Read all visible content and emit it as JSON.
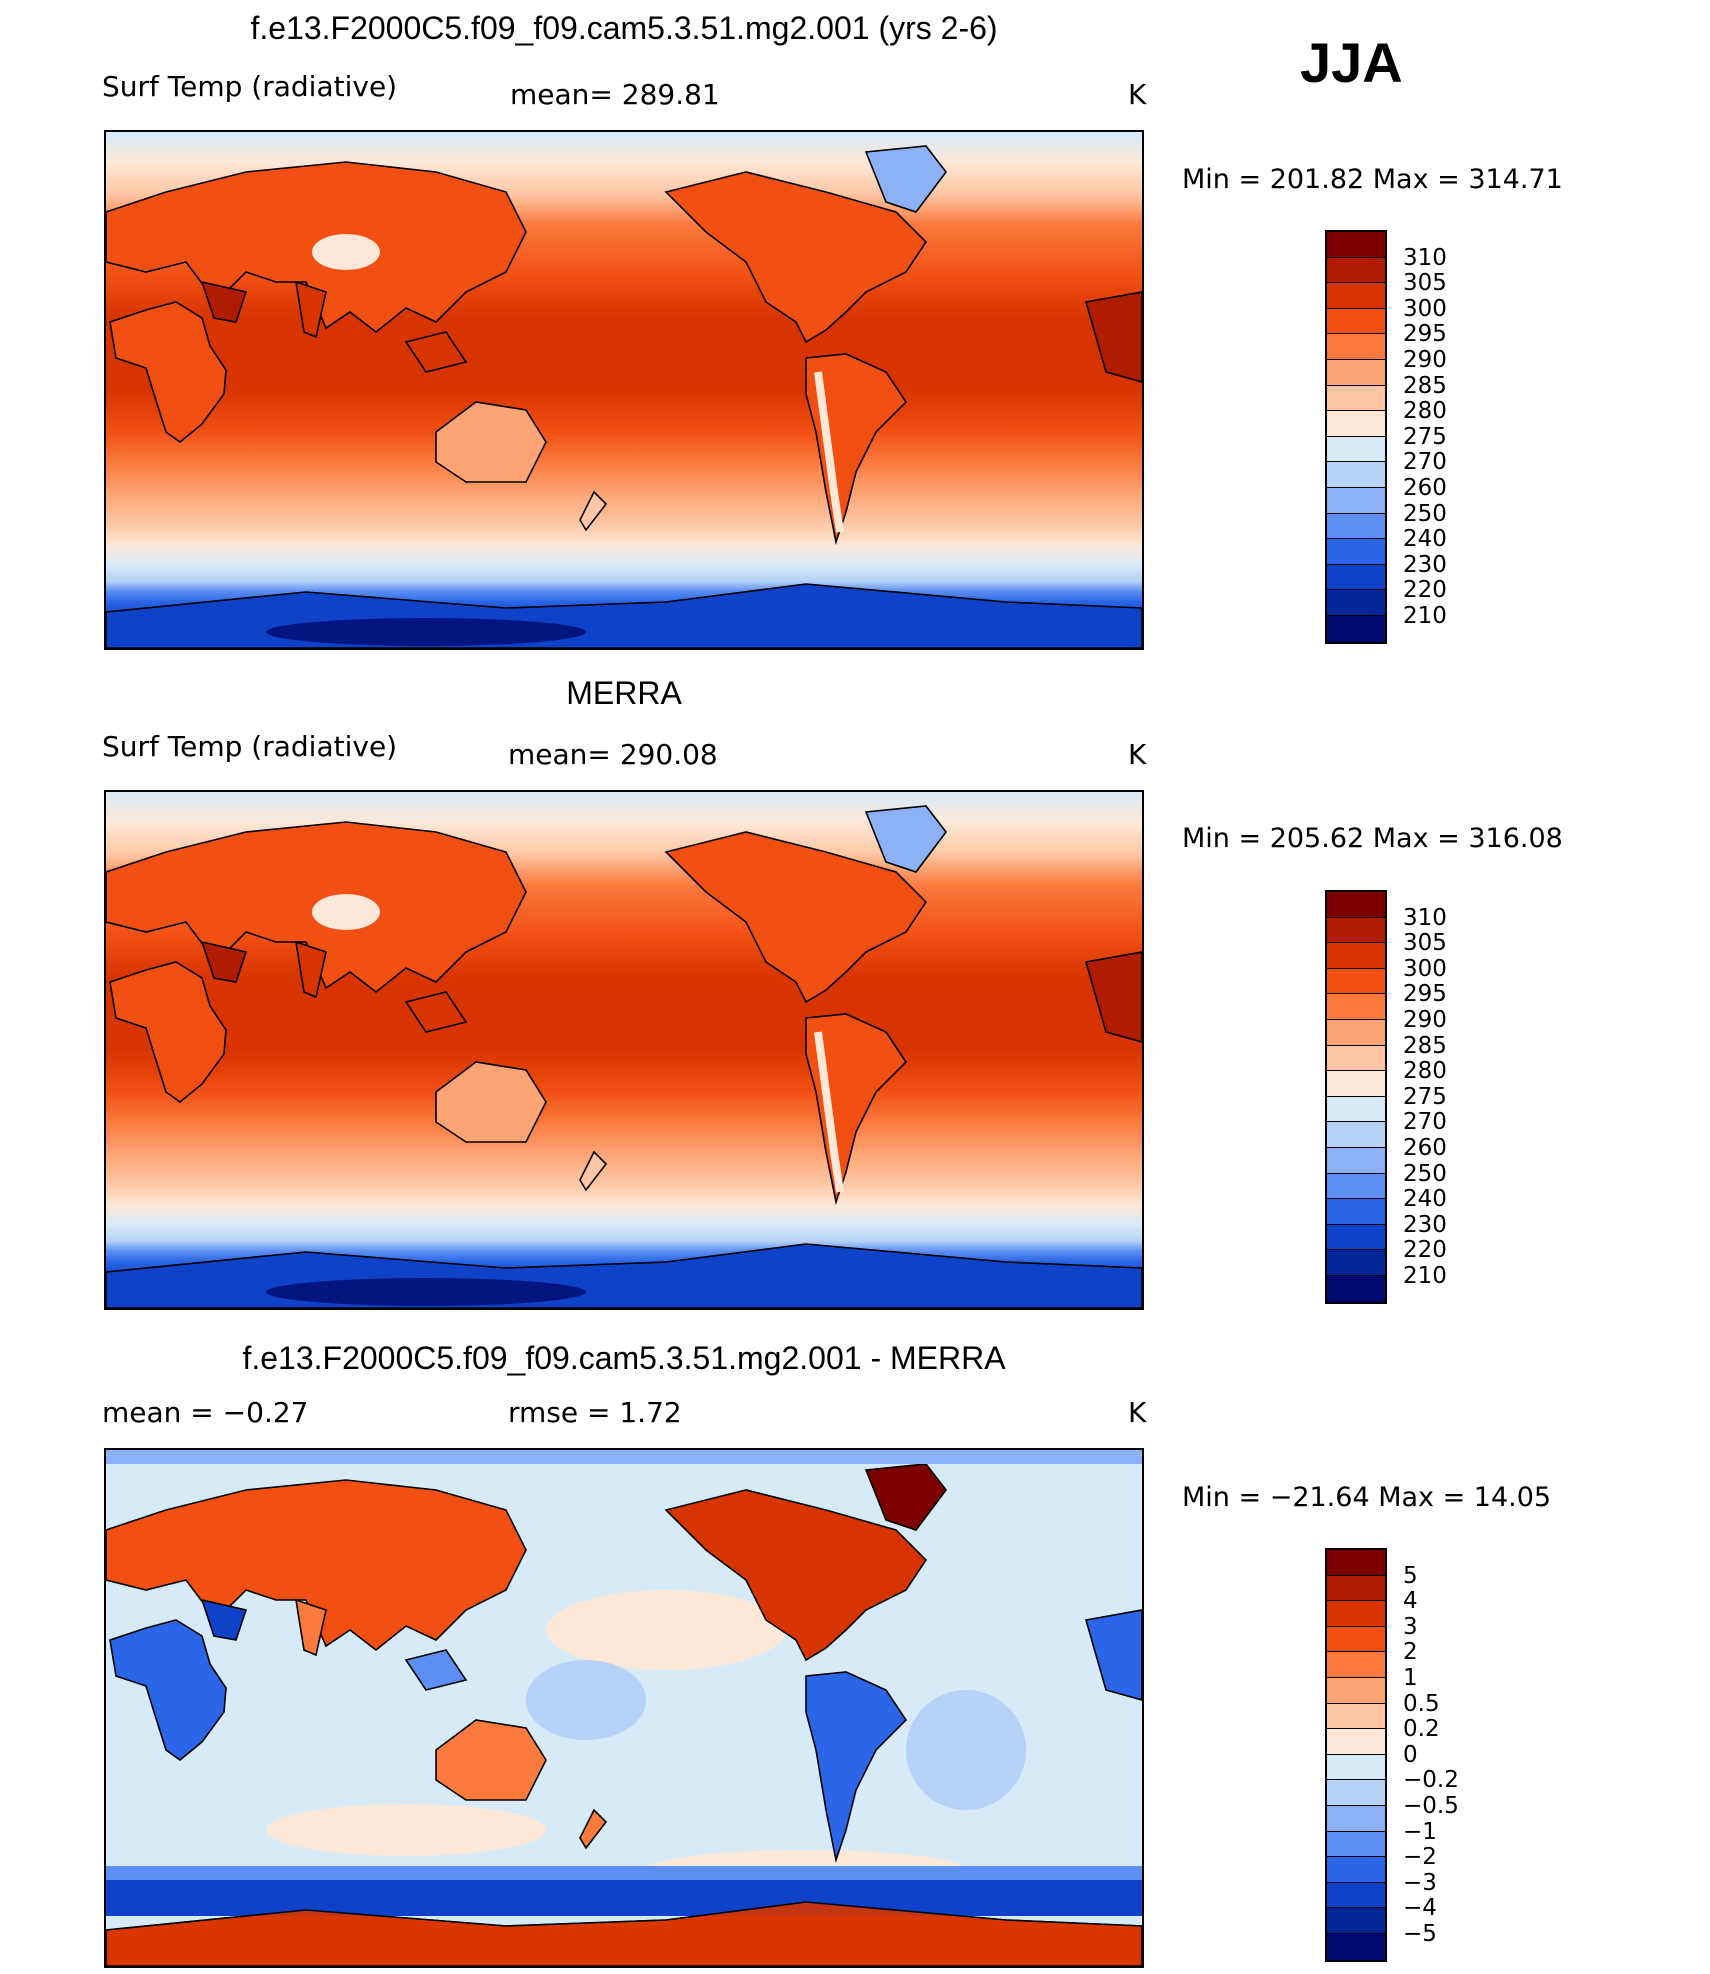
{
  "season": "JJA",
  "chart_data": [
    {
      "type": "heatmap",
      "title": "f.e13.F2000C5.f09_f09.cam5.3.51.mg2.001 (yrs 2-6)",
      "variable": "Surf Temp (radiative)",
      "stat_text": "mean=  289.81",
      "units": "K",
      "minmax_text": "Min  =  201.82  Max  =  314.71",
      "mean": 289.81,
      "min": 201.82,
      "max": 314.71,
      "colorbar": {
        "labels": [
          "310",
          "305",
          "300",
          "295",
          "290",
          "285",
          "280",
          "275",
          "270",
          "260",
          "250",
          "240",
          "230",
          "220",
          "210"
        ],
        "colors": [
          "#7d0000",
          "#b01c00",
          "#d73400",
          "#f24f13",
          "#fb7a3e",
          "#fda474",
          "#fdc7a5",
          "#fde8d7",
          "#d6eaf8",
          "#b7d2f7",
          "#8cb1f5",
          "#5d8ef3",
          "#2c66e8",
          "#0f42c8",
          "#042696",
          "#000a6e"
        ]
      }
    },
    {
      "type": "heatmap",
      "title": "MERRA",
      "variable": "Surf Temp (radiative)",
      "stat_text": "mean=  290.08",
      "units": "K",
      "minmax_text": "Min  =  205.62  Max  =  316.08",
      "mean": 290.08,
      "min": 205.62,
      "max": 316.08,
      "colorbar": {
        "labels": [
          "310",
          "305",
          "300",
          "295",
          "290",
          "285",
          "280",
          "275",
          "270",
          "260",
          "250",
          "240",
          "230",
          "220",
          "210"
        ],
        "colors": [
          "#7d0000",
          "#b01c00",
          "#d73400",
          "#f24f13",
          "#fb7a3e",
          "#fda474",
          "#fdc7a5",
          "#fde8d7",
          "#d6eaf8",
          "#b7d2f7",
          "#8cb1f5",
          "#5d8ef3",
          "#2c66e8",
          "#0f42c8",
          "#042696",
          "#000a6e"
        ]
      }
    },
    {
      "type": "heatmap",
      "title": "f.e13.F2000C5.f09_f09.cam5.3.51.mg2.001 - MERRA",
      "variable": "mean  =     −0.27",
      "stat_text": "rmse  =     1.72",
      "units": "K",
      "minmax_text": "Min  =  −21.64  Max  =    14.05",
      "mean": -0.27,
      "rmse": 1.72,
      "min": -21.64,
      "max": 14.05,
      "colorbar": {
        "labels": [
          "5",
          "4",
          "3",
          "2",
          "1",
          "0.5",
          "0.2",
          "0",
          "−0.2",
          "−0.5",
          "−1",
          "−2",
          "−3",
          "−4",
          "−5"
        ],
        "colors": [
          "#7d0000",
          "#b01c00",
          "#d73400",
          "#f24f13",
          "#fb7a3e",
          "#fda474",
          "#fdc7a5",
          "#fde8d7",
          "#d6eaf8",
          "#b7d2f7",
          "#8cb1f5",
          "#5d8ef3",
          "#2c66e8",
          "#0f42c8",
          "#042696",
          "#000a6e"
        ]
      }
    }
  ]
}
